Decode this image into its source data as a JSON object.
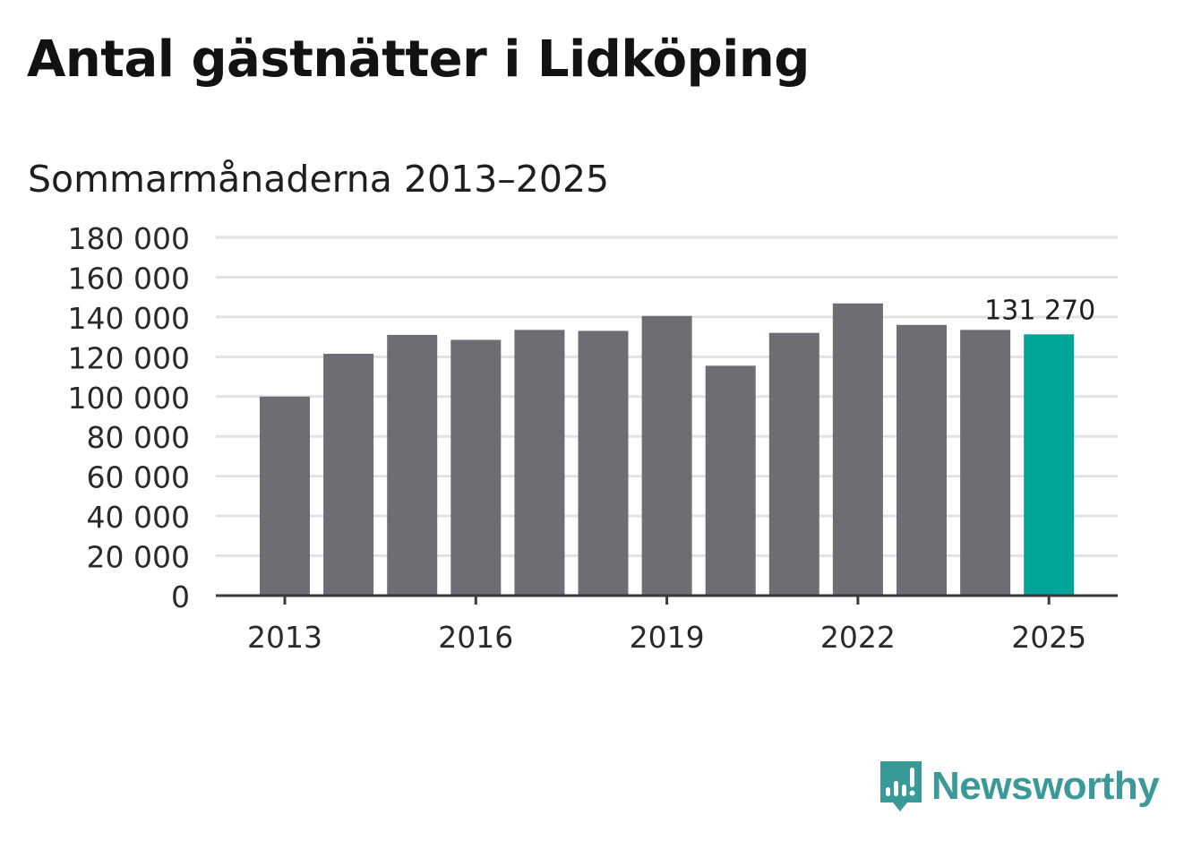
{
  "colors": {
    "bar": "#6e6d73",
    "highlight": "#00a499",
    "grid": "#e2e2e2",
    "axis": "#3a3a3a",
    "brand": "#3a9a97"
  },
  "brand": {
    "name": "Newsworthy",
    "icon": "bar-chart-speech-bubble-icon"
  },
  "chart_data": {
    "type": "bar",
    "title": "Antal gästnätter i Lidköping",
    "subtitle": "Sommarmånaderna 2013–2025",
    "categories": [
      2013,
      2014,
      2015,
      2016,
      2017,
      2018,
      2019,
      2020,
      2021,
      2022,
      2023,
      2024,
      2025
    ],
    "values": [
      100000,
      121500,
      131000,
      128500,
      133500,
      133000,
      140500,
      115500,
      132000,
      146800,
      136000,
      133500,
      131270
    ],
    "highlight_index": 12,
    "highlight_label": "131 270",
    "ylim": [
      0,
      180000
    ],
    "yticks": [
      0,
      20000,
      40000,
      60000,
      80000,
      100000,
      120000,
      140000,
      160000,
      180000
    ],
    "ytick_labels": [
      "0",
      "20 000",
      "40 000",
      "60 000",
      "80 000",
      "100 000",
      "120 000",
      "140 000",
      "160 000",
      "180 000"
    ],
    "xtick_years": [
      2013,
      2016,
      2019,
      2022,
      2025
    ],
    "xtick_labels": [
      "2013",
      "2016",
      "2019",
      "2022",
      "2025"
    ],
    "xlabel": "",
    "ylabel": "",
    "grid": true,
    "legend": "none"
  }
}
